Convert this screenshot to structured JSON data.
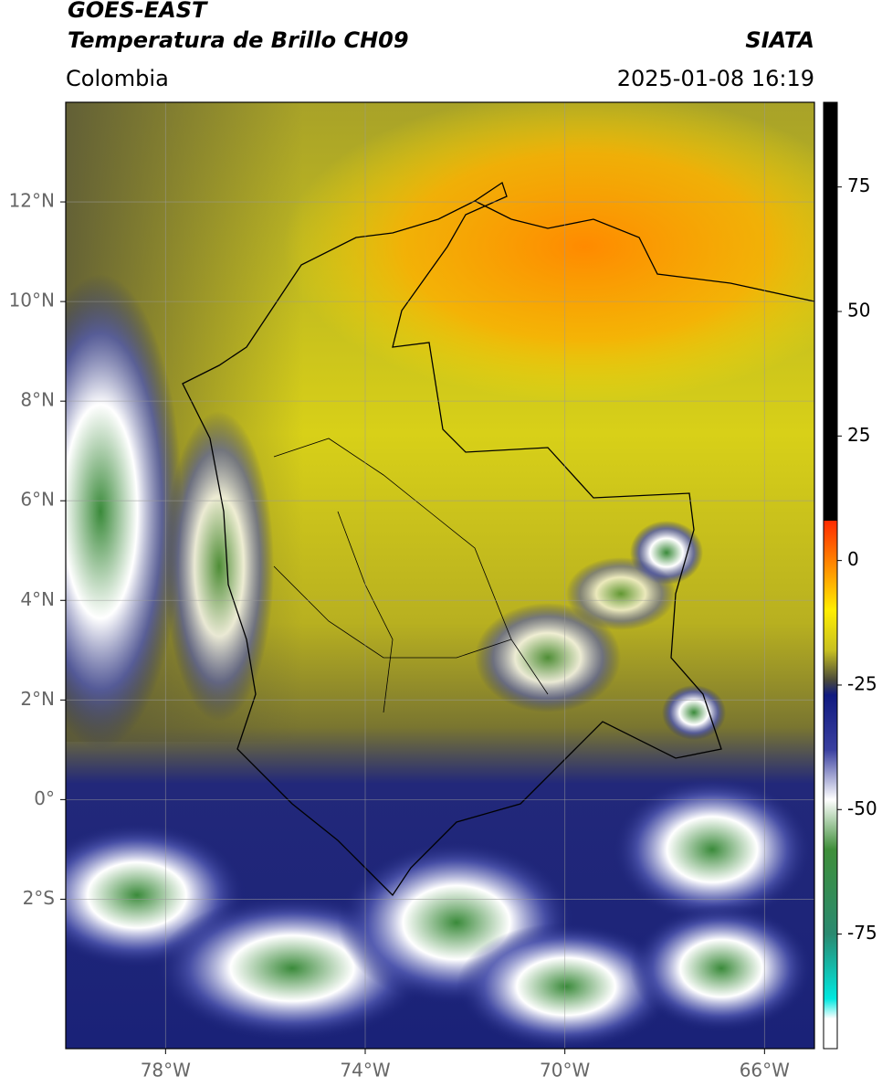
{
  "header": {
    "title": "GOES-EAST",
    "subtitle": "Temperatura de Brillo CH09",
    "source": "SIATA",
    "region": "Colombia",
    "timestamp": "2025-01-08 16:19"
  },
  "map": {
    "lon_range": [
      -80,
      -65
    ],
    "lat_range": [
      -5,
      14
    ],
    "grid": true,
    "lon_ticks": [
      {
        "value": -78,
        "label": "78°W"
      },
      {
        "value": -74,
        "label": "74°W"
      },
      {
        "value": -70,
        "label": "70°W"
      },
      {
        "value": -66,
        "label": "66°W"
      }
    ],
    "lat_ticks": [
      {
        "value": 12,
        "label": "12°N"
      },
      {
        "value": 10,
        "label": "10°N"
      },
      {
        "value": 8,
        "label": "8°N"
      },
      {
        "value": 6,
        "label": "6°N"
      },
      {
        "value": 4,
        "label": "4°N"
      },
      {
        "value": 2,
        "label": "2°N"
      },
      {
        "value": 0,
        "label": "0°"
      },
      {
        "value": -2,
        "label": "2°S"
      }
    ]
  },
  "colorbar": {
    "range": [
      -98,
      92
    ],
    "ticks": [
      75,
      50,
      25,
      0,
      -25,
      -50,
      -75
    ],
    "colormap": [
      {
        "value": 92,
        "color": "#000000"
      },
      {
        "value": 8,
        "color": "#000000"
      },
      {
        "value": 8,
        "color": "#ff2a00"
      },
      {
        "value": 0,
        "color": "#ff8000"
      },
      {
        "value": -10,
        "color": "#ffee00"
      },
      {
        "value": -18,
        "color": "#c8c020"
      },
      {
        "value": -24,
        "color": "#4a4a3a"
      },
      {
        "value": -27,
        "color": "#101a80"
      },
      {
        "value": -38,
        "color": "#3a40a0"
      },
      {
        "value": -48,
        "color": "#ffffff"
      },
      {
        "value": -58,
        "color": "#3f8f3a"
      },
      {
        "value": -75,
        "color": "#2a8a70"
      },
      {
        "value": -88,
        "color": "#00e8e0"
      },
      {
        "value": -92,
        "color": "#ffffff"
      },
      {
        "value": -98,
        "color": "#ffffff"
      }
    ]
  }
}
